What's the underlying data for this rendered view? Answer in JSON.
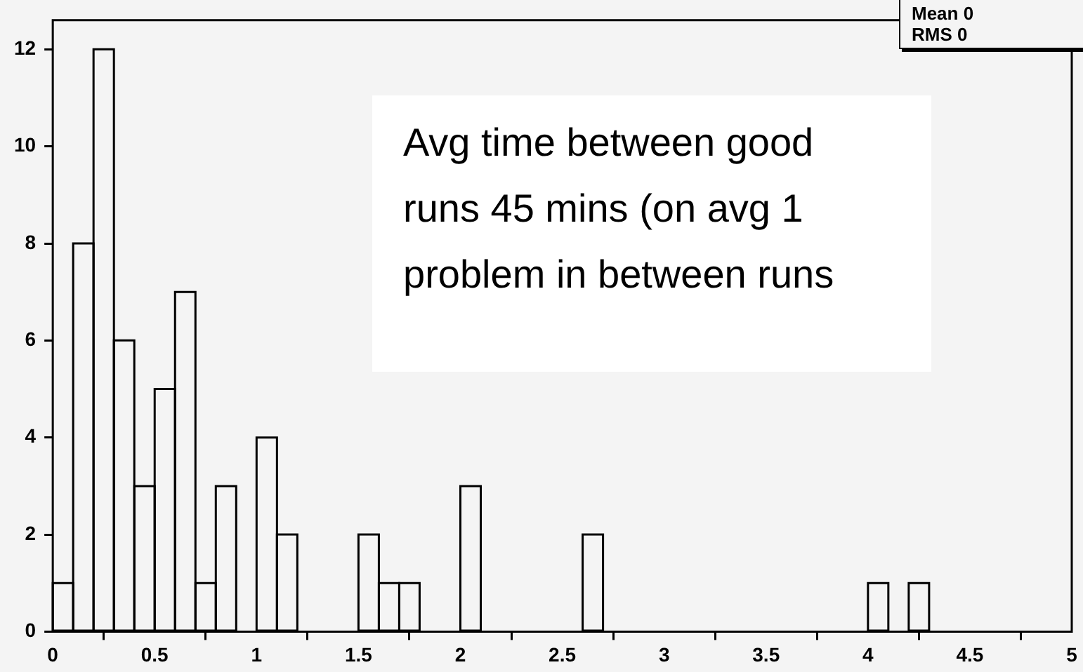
{
  "chart_data": {
    "type": "histogram",
    "bins": [
      0,
      0.1,
      0.2,
      0.3,
      0.4,
      0.5,
      0.6,
      0.7,
      0.8,
      0.9,
      1,
      1.1,
      1.2,
      1.3,
      1.4,
      1.5,
      1.6,
      1.7,
      1.8,
      1.9,
      2,
      2.1,
      2.2,
      2.3,
      2.4,
      2.5,
      2.6,
      2.7,
      2.8,
      2.9,
      3,
      3.1,
      3.2,
      3.3,
      3.4,
      3.5,
      3.6,
      3.7,
      3.8,
      3.9,
      4,
      4.1,
      4.2,
      4.3,
      4.4,
      4.5,
      4.6,
      4.7,
      4.8,
      4.9,
      5
    ],
    "values": [
      1,
      8,
      12,
      6,
      3,
      5,
      7,
      1,
      3,
      0,
      4,
      2,
      0,
      0,
      0,
      2,
      1,
      1,
      0,
      0,
      3,
      0,
      0,
      0,
      0,
      0,
      2,
      0,
      0,
      0,
      0,
      0,
      0,
      0,
      0,
      0,
      0,
      0,
      0,
      0,
      1,
      0,
      1,
      0,
      0,
      0,
      0,
      0,
      0,
      0
    ],
    "color": "#000000",
    "xlim": [
      0,
      5
    ],
    "xticks": [
      0,
      0.5,
      1,
      1.5,
      2,
      2.5,
      3,
      3.5,
      4,
      4.5,
      5
    ],
    "ylim": [
      0,
      12.6
    ],
    "yticks": [
      0,
      2,
      4,
      6,
      8,
      10,
      12
    ],
    "grid": false,
    "legend": false,
    "annotations": [
      "Mean 0",
      "RMS 0",
      "Avg time between good runs 45 mins (on avg 1 problem in between runs"
    ]
  }
}
